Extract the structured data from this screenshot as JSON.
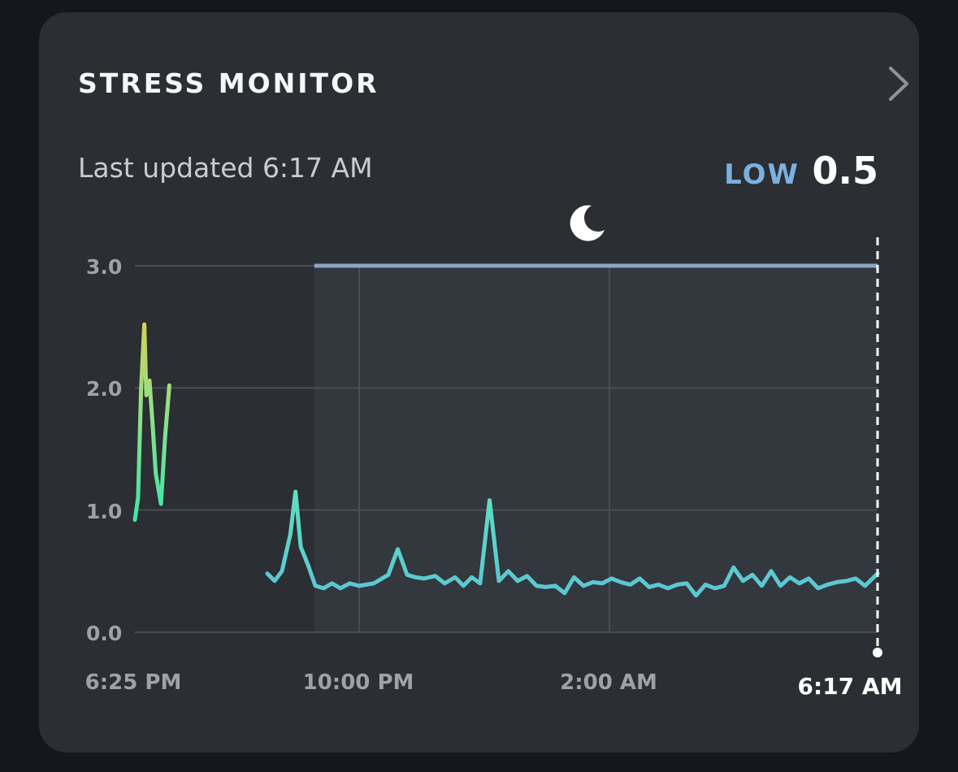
{
  "card": {
    "title": "STRESS MONITOR",
    "last_updated": "Last updated 6:17 AM",
    "level_label": "LOW",
    "score": "0.5",
    "icons": {
      "chevron": "chevron-right-icon",
      "sleep": "moon-icon"
    }
  },
  "colors": {
    "background": "#14181c",
    "card": "#2b2e32",
    "level": "#7bb0df",
    "sleep_line": "#8aa6c4",
    "line_low": "#5cc3d4",
    "line_mid": "#3de6a8",
    "line_high": "#d4d15a"
  },
  "chart_data": {
    "type": "line",
    "title": "",
    "xlabel": "",
    "ylabel": "",
    "ylim": [
      0,
      3
    ],
    "yticks": [
      "0.0",
      "1.0",
      "2.0",
      "3.0"
    ],
    "xticks": [
      "6:25 PM",
      "10:00 PM",
      "2:00 AM",
      "6:17 AM"
    ],
    "x_range": [
      "6:25 PM",
      "6:17 AM"
    ],
    "grid": true,
    "sleep_period": {
      "start": "9:17 PM",
      "end": "6:17 AM"
    },
    "series": [
      {
        "segment": "evening",
        "x": [
          "6:25 PM",
          "6:28 PM",
          "6:31 PM",
          "6:34 PM",
          "6:36 PM",
          "6:39 PM",
          "6:42 PM",
          "6:45 PM",
          "6:50 PM",
          "6:54 PM",
          "6:58 PM"
        ],
        "values": [
          0.92,
          1.1,
          2.0,
          2.52,
          1.94,
          2.06,
          1.7,
          1.3,
          1.05,
          1.6,
          2.02
        ]
      },
      {
        "segment": "night",
        "x": [
          "8:32 PM",
          "8:39 PM",
          "8:46 PM",
          "8:54 PM",
          "8:59 PM",
          "9:04 PM",
          "9:11 PM",
          "9:18 PM",
          "9:26 PM",
          "9:34 PM",
          "9:42 PM",
          "9:51 PM",
          "10:00 PM",
          "10:14 PM",
          "10:28 PM",
          "10:37 PM",
          "10:46 PM",
          "10:54 PM",
          "11:02 PM",
          "11:13 PM",
          "11:22 PM",
          "11:32 PM",
          "11:40 PM",
          "11:48 PM",
          "11:56 PM",
          "12:05 AM",
          "12:14 AM",
          "12:23 AM",
          "12:32 AM",
          "12:41 AM",
          "12:50 AM",
          "12:59 AM",
          "1:08 AM",
          "1:17 AM",
          "1:26 AM",
          "1:35 AM",
          "1:44 AM",
          "1:53 AM",
          "2:02 AM",
          "2:11 AM",
          "2:20 AM",
          "2:29 AM",
          "2:38 AM",
          "2:47 AM",
          "2:56 AM",
          "3:05 AM",
          "3:14 AM",
          "3:23 AM",
          "3:32 AM",
          "3:41 AM",
          "3:50 AM",
          "3:59 AM",
          "4:08 AM",
          "4:17 AM",
          "4:26 AM",
          "4:35 AM",
          "4:44 AM",
          "4:53 AM",
          "5:02 AM",
          "5:11 AM",
          "5:20 AM",
          "5:29 AM",
          "5:38 AM",
          "5:47 AM",
          "5:56 AM",
          "6:05 AM",
          "6:17 AM"
        ],
        "values": [
          0.48,
          0.42,
          0.5,
          0.8,
          1.15,
          0.7,
          0.55,
          0.38,
          0.36,
          0.4,
          0.36,
          0.4,
          0.38,
          0.4,
          0.47,
          0.68,
          0.47,
          0.45,
          0.44,
          0.46,
          0.4,
          0.45,
          0.38,
          0.45,
          0.4,
          1.08,
          0.42,
          0.5,
          0.42,
          0.46,
          0.38,
          0.37,
          0.38,
          0.32,
          0.45,
          0.38,
          0.41,
          0.4,
          0.44,
          0.41,
          0.39,
          0.44,
          0.37,
          0.39,
          0.36,
          0.39,
          0.4,
          0.3,
          0.39,
          0.36,
          0.38,
          0.53,
          0.42,
          0.47,
          0.38,
          0.5,
          0.38,
          0.45,
          0.4,
          0.44,
          0.36,
          0.39,
          0.41,
          0.42,
          0.44,
          0.38,
          0.48
        ]
      }
    ]
  }
}
